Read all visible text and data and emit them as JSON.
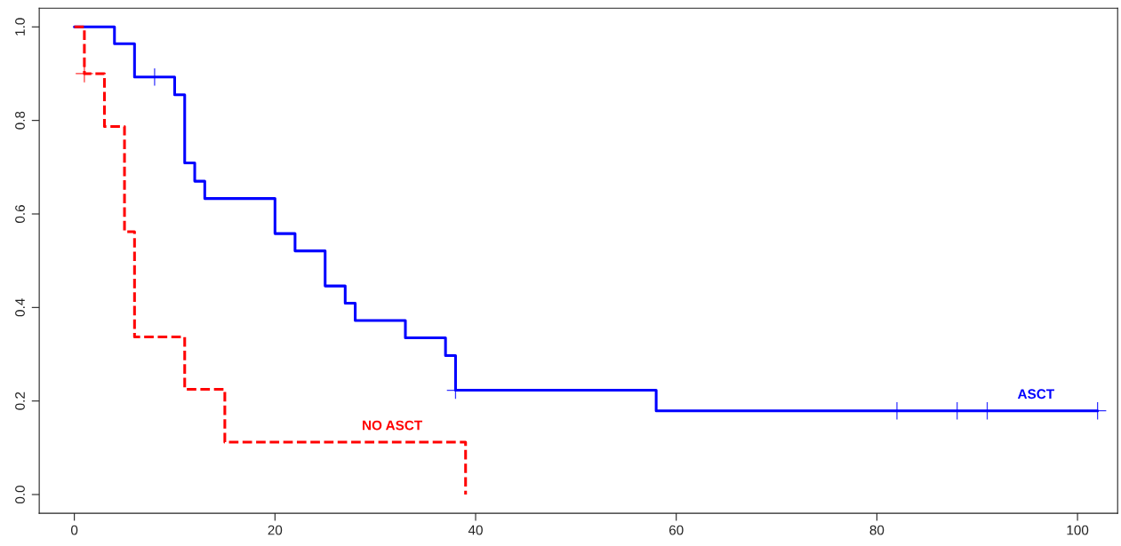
{
  "chart_data": {
    "type": "step",
    "xlim": [
      -3.5,
      104
    ],
    "ylim": [
      -0.04,
      1.04
    ],
    "xticks": [
      0,
      20,
      40,
      60,
      80,
      100
    ],
    "yticks": [
      {
        "value": 0,
        "label": "0.0"
      },
      0.2,
      0.4,
      0.6,
      0.8,
      {
        "value": 1,
        "label": "1.0"
      }
    ],
    "grid": false,
    "legend": false,
    "series": [
      {
        "name": "ASCT",
        "color": "#0000ff",
        "line_style": "solid",
        "x": [
          0,
          4,
          6,
          10,
          11,
          12,
          13,
          20,
          22,
          25,
          27,
          28,
          33,
          37,
          38,
          58,
          102
        ],
        "values": [
          1.0,
          0.964,
          0.893,
          0.855,
          0.709,
          0.67,
          0.633,
          0.558,
          0.521,
          0.446,
          0.409,
          0.372,
          0.335,
          0.297,
          0.223,
          0.179,
          0.179
        ]
      },
      {
        "name": "NO ASCT",
        "color": "#ff0000",
        "line_style": "dashed",
        "x": [
          0,
          1,
          3,
          5,
          6,
          11,
          15,
          39
        ],
        "values": [
          1.0,
          0.9,
          0.787,
          0.562,
          0.337,
          0.225,
          0.112,
          0.0
        ]
      },
      {
        "type": "scatter",
        "marker": "cross",
        "color": "#0000ff",
        "x": [
          8,
          38,
          82,
          88,
          91,
          102
        ],
        "values": [
          0.893,
          0.223,
          0.179,
          0.179,
          0.179,
          0.179
        ]
      },
      {
        "type": "scatter",
        "marker": "cross",
        "color": "#ff0000",
        "x": [
          1
        ],
        "values": [
          0.9
        ]
      }
    ]
  }
}
